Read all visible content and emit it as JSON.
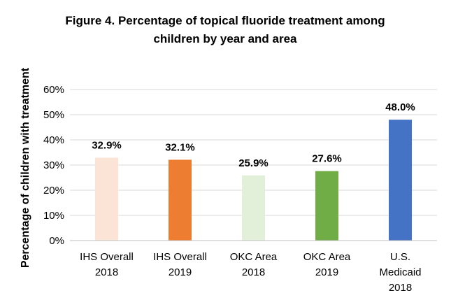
{
  "chart_data": {
    "type": "bar",
    "title_lines": [
      "Figure 4. Percentage of topical fluoride treatment among",
      "children by year and area"
    ],
    "xlabel": "",
    "ylabel": "Percentage of children with treatment",
    "ylim": [
      0,
      60
    ],
    "yticks": [
      "0%",
      "10%",
      "20%",
      "30%",
      "40%",
      "50%",
      "60%"
    ],
    "grid": true,
    "legend": "none",
    "categories": [
      [
        "IHS Overall",
        "2018"
      ],
      [
        "IHS Overall",
        "2019"
      ],
      [
        "OKC Area",
        "2018"
      ],
      [
        "OKC Area",
        "2019"
      ],
      [
        "U.S.",
        "Medicaid",
        "2018"
      ]
    ],
    "values": [
      32.9,
      32.1,
      25.9,
      27.6,
      48.0
    ],
    "data_labels": [
      "32.9%",
      "32.1%",
      "25.9%",
      "27.6%",
      "48.0%"
    ],
    "colors": [
      "#fbe4d5",
      "#ed7d31",
      "#e2efd9",
      "#70ad47",
      "#4472c4"
    ]
  }
}
